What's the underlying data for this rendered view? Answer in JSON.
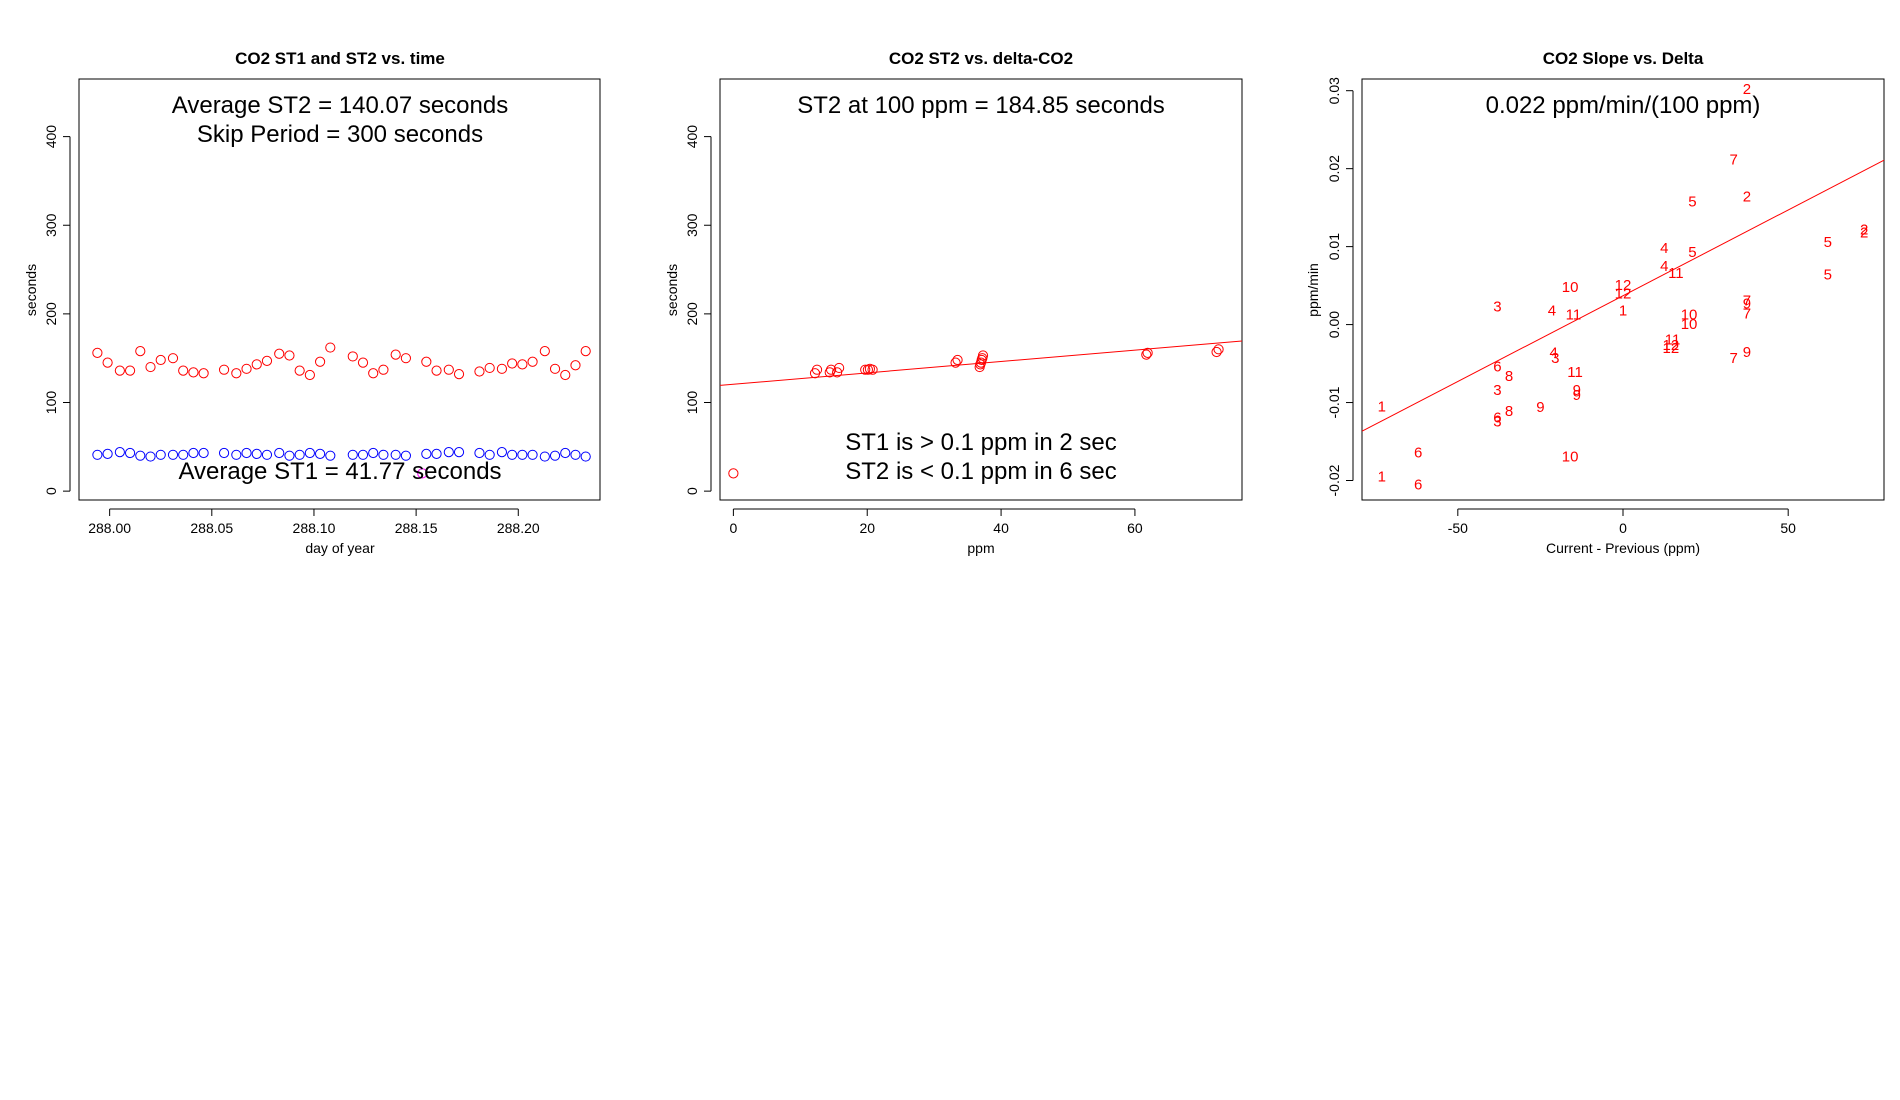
{
  "colors": {
    "st2": "#ff0000",
    "st1": "#0000ff",
    "fit": "#ff0000",
    "lab": "#ff0000"
  },
  "chart_data": [
    {
      "type": "scatter",
      "title": "CO2 ST1 and ST2 vs. time",
      "xlabel": "day of year",
      "ylabel": "seconds",
      "xlim": [
        287.985,
        288.24
      ],
      "ylim": [
        -10,
        465
      ],
      "xticks": [
        288.0,
        288.05,
        288.1,
        288.15,
        288.2
      ],
      "xtick_labels": [
        "288.00",
        "288.05",
        "288.10",
        "288.15",
        "288.20"
      ],
      "yticks": [
        0,
        100,
        200,
        300,
        400
      ],
      "ytick_labels": [
        "0",
        "100",
        "200",
        "300",
        "400"
      ],
      "annotations": [
        "Average ST2 =  140.07  seconds",
        "Skip Period =  300  seconds",
        "Average ST1 =  41.77  seconds"
      ],
      "series": [
        {
          "name": "ST2",
          "x": [
            287.994,
            287.999,
            288.005,
            288.01,
            288.015,
            288.02,
            288.025,
            288.031,
            288.036,
            288.041,
            288.046,
            288.056,
            288.062,
            288.067,
            288.072,
            288.077,
            288.083,
            288.088,
            288.093,
            288.098,
            288.103,
            288.108,
            288.119,
            288.124,
            288.129,
            288.134,
            288.14,
            288.145,
            288.155,
            288.16,
            288.166,
            288.171,
            288.181,
            288.186,
            288.192,
            288.197,
            288.202,
            288.207,
            288.213,
            288.218,
            288.223,
            288.228,
            288.233
          ],
          "y": [
            156,
            145,
            136,
            136,
            158,
            140,
            148,
            150,
            136,
            134,
            133,
            137,
            133,
            138,
            143,
            147,
            155,
            153,
            136,
            131,
            146,
            162,
            152,
            145,
            133,
            137,
            154,
            150,
            146,
            136,
            137,
            132,
            135,
            139,
            138,
            144,
            143,
            146,
            158,
            138,
            131,
            142,
            158
          ]
        },
        {
          "name": "ST1",
          "x": [
            287.994,
            287.999,
            288.005,
            288.01,
            288.015,
            288.02,
            288.025,
            288.031,
            288.036,
            288.041,
            288.046,
            288.056,
            288.062,
            288.067,
            288.072,
            288.077,
            288.083,
            288.088,
            288.093,
            288.098,
            288.103,
            288.108,
            288.119,
            288.124,
            288.129,
            288.134,
            288.14,
            288.145,
            288.155,
            288.16,
            288.166,
            288.171,
            288.181,
            288.186,
            288.192,
            288.197,
            288.202,
            288.207,
            288.213,
            288.218,
            288.223,
            288.228,
            288.233
          ],
          "y": [
            41,
            42,
            44,
            43,
            40,
            39,
            41,
            41,
            41,
            43,
            43,
            43,
            41,
            43,
            42,
            41,
            43,
            40,
            41,
            43,
            42,
            40,
            41,
            41,
            43,
            41,
            41,
            40,
            42,
            42,
            44,
            44,
            43,
            41,
            44,
            41,
            41,
            41,
            39,
            40,
            43,
            41,
            39
          ]
        }
      ],
      "outlier": {
        "x": 288.153,
        "y": 20
      }
    },
    {
      "type": "scatter",
      "title": "CO2 ST2 vs. delta-CO2",
      "xlabel": "ppm",
      "ylabel": "seconds",
      "xlim": [
        -2,
        76
      ],
      "ylim": [
        -10,
        465
      ],
      "xticks": [
        0,
        20,
        40,
        60
      ],
      "xtick_labels": [
        "0",
        "20",
        "40",
        "60"
      ],
      "yticks": [
        0,
        100,
        200,
        300,
        400
      ],
      "ytick_labels": [
        "0",
        "100",
        "200",
        "300",
        "400"
      ],
      "annotations": [
        "ST2 at 100 ppm =  184.85  seconds",
        "ST1 is > 0.1 ppm in 2 sec",
        "ST2 is < 0.1 ppm in 6 sec"
      ],
      "points": {
        "x": [
          0,
          12.2,
          12.5,
          14.4,
          14.6,
          15.5,
          15.8,
          19.7,
          20.1,
          20.4,
          20.8,
          33.2,
          33.5,
          36.8,
          36.9,
          37.0,
          37.1,
          37.2,
          37.3,
          61.7,
          61.9,
          72.2,
          72.5
        ],
        "y": [
          20,
          133,
          137,
          134,
          137,
          134,
          139,
          137,
          137,
          138,
          137,
          145,
          148,
          140,
          143,
          145,
          148,
          150,
          153,
          154,
          156,
          157,
          160
        ]
      },
      "fit": {
        "intercept": 120.55,
        "slope": 0.643
      }
    },
    {
      "type": "scatter",
      "title": "CO2 Slope vs. Delta",
      "xlabel": "Current - Previous (ppm)",
      "ylabel": "ppm/min",
      "xlim": [
        -79,
        79
      ],
      "ylim": [
        -0.0225,
        0.0315
      ],
      "xticks": [
        -50,
        0,
        50
      ],
      "xtick_labels": [
        "-50",
        "0",
        "50"
      ],
      "yticks": [
        -0.02,
        -0.01,
        0.0,
        0.01,
        0.02,
        0.03
      ],
      "ytick_labels": [
        "-0.02",
        "-0.01",
        "0.00",
        "0.01",
        "0.02",
        "0.03"
      ],
      "annotations": [
        "0.022  ppm/min/(100 ppm)"
      ],
      "text_points": [
        {
          "x": -73,
          "y": -0.0105,
          "t": "1"
        },
        {
          "x": -73,
          "y": -0.0195,
          "t": "1"
        },
        {
          "x": 0,
          "y": 0.0018,
          "t": "1"
        },
        {
          "x": 37.5,
          "y": 0.0302,
          "t": "2"
        },
        {
          "x": 37.5,
          "y": 0.0164,
          "t": "2"
        },
        {
          "x": 73,
          "y": 0.0122,
          "t": "2"
        },
        {
          "x": 73,
          "y": 0.0118,
          "t": "2"
        },
        {
          "x": -38,
          "y": 0.0023,
          "t": "3"
        },
        {
          "x": -38,
          "y": -0.0084,
          "t": "3"
        },
        {
          "x": -38,
          "y": -0.0124,
          "t": "3"
        },
        {
          "x": -20.5,
          "y": -0.0043,
          "t": "3"
        },
        {
          "x": -21.5,
          "y": 0.0018,
          "t": "4"
        },
        {
          "x": -21,
          "y": -0.0036,
          "t": "4"
        },
        {
          "x": 12.5,
          "y": 0.0098,
          "t": "4"
        },
        {
          "x": 12.5,
          "y": 0.0075,
          "t": "4"
        },
        {
          "x": 21,
          "y": 0.0158,
          "t": "5"
        },
        {
          "x": 21,
          "y": 0.0093,
          "t": "5"
        },
        {
          "x": 62,
          "y": 0.0106,
          "t": "5"
        },
        {
          "x": 62,
          "y": 0.0064,
          "t": "5"
        },
        {
          "x": -62,
          "y": -0.0164,
          "t": "6"
        },
        {
          "x": -62,
          "y": -0.0205,
          "t": "6"
        },
        {
          "x": -38,
          "y": -0.0054,
          "t": "6"
        },
        {
          "x": -38,
          "y": -0.0119,
          "t": "6"
        },
        {
          "x": 33.5,
          "y": 0.0212,
          "t": "7"
        },
        {
          "x": 37.5,
          "y": 0.0031,
          "t": "7"
        },
        {
          "x": 37.5,
          "y": 0.0014,
          "t": "7"
        },
        {
          "x": 33.5,
          "y": -0.0043,
          "t": "7"
        },
        {
          "x": -34.5,
          "y": -0.0066,
          "t": "8"
        },
        {
          "x": -34.5,
          "y": -0.0111,
          "t": "8"
        },
        {
          "x": 37.5,
          "y": 0.0027,
          "t": "9"
        },
        {
          "x": 37.5,
          "y": -0.0035,
          "t": "9"
        },
        {
          "x": -14,
          "y": -0.0084,
          "t": "9"
        },
        {
          "x": -14,
          "y": -0.009,
          "t": "9"
        },
        {
          "x": -25,
          "y": -0.0106,
          "t": "9"
        },
        {
          "x": -16,
          "y": 0.0048,
          "t": "10"
        },
        {
          "x": 20,
          "y": 0.0013,
          "t": "10"
        },
        {
          "x": 20,
          "y": 0.0001,
          "t": "10"
        },
        {
          "x": -16,
          "y": -0.0169,
          "t": "10"
        },
        {
          "x": -15,
          "y": 0.0013,
          "t": "11"
        },
        {
          "x": 16,
          "y": 0.0066,
          "t": "11"
        },
        {
          "x": 15,
          "y": -0.0019,
          "t": "11"
        },
        {
          "x": -14.5,
          "y": -0.0061,
          "t": "11"
        },
        {
          "x": 0,
          "y": 0.0051,
          "t": "12"
        },
        {
          "x": 0,
          "y": 0.004,
          "t": "12"
        },
        {
          "x": 14.5,
          "y": -0.0026,
          "t": "12"
        },
        {
          "x": 14.5,
          "y": -0.003,
          "t": "12"
        }
      ],
      "fit": {
        "intercept": 0.0037,
        "slope": 0.00022
      }
    }
  ]
}
